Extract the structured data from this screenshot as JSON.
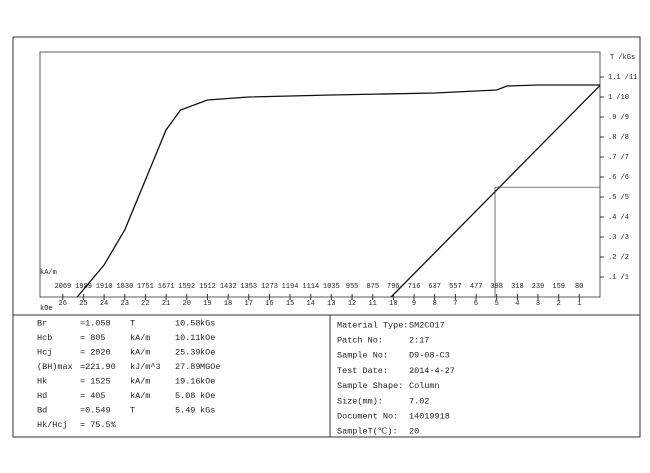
{
  "chart_data": {
    "type": "line",
    "x_unit_label": "kOe",
    "x2_unit_label": "kA/m",
    "y_unit_label": "T /kGs",
    "xlim": [
      27.1,
      0
    ],
    "xticks": [
      26,
      25,
      24,
      23,
      22,
      21,
      20,
      19,
      18,
      17,
      16,
      15,
      14,
      13,
      12,
      11,
      10,
      9,
      8,
      7,
      6,
      5,
      4,
      3,
      2,
      1
    ],
    "x2lim": [
      2157,
      0
    ],
    "x2ticks": [
      2069,
      1989,
      1910,
      1830,
      1751,
      1671,
      1592,
      1512,
      1432,
      1353,
      1273,
      1194,
      1114,
      1035,
      955,
      875,
      796,
      716,
      637,
      557,
      477,
      398,
      318,
      239,
      159,
      80
    ],
    "ylim": [
      0,
      1.225
    ],
    "yticks": [
      {
        "value": 1.1,
        "label": "1.1 /11"
      },
      {
        "value": 1.0,
        "label": "1 /10"
      },
      {
        "value": 0.9,
        "label": ".9 /9"
      },
      {
        "value": 0.8,
        "label": ".8 /8"
      },
      {
        "value": 0.7,
        "label": ".7 /7"
      },
      {
        "value": 0.6,
        "label": ".6 /6"
      },
      {
        "value": 0.5,
        "label": ".5 /5"
      },
      {
        "value": 0.4,
        "label": ".4 /4"
      },
      {
        "value": 0.3,
        "label": ".3 /3"
      },
      {
        "value": 0.2,
        "label": ".2 /2"
      },
      {
        "value": 0.1,
        "label": ".1 /1"
      }
    ],
    "series": [
      {
        "color": "#111111",
        "x": [
          25.3,
          24,
          23,
          22,
          21,
          20.3,
          19,
          17,
          13,
          8,
          5,
          4.5,
          3,
          0
        ],
        "values": [
          0,
          0.16,
          0.335,
          0.585,
          0.835,
          0.935,
          0.985,
          1.0,
          1.01,
          1.02,
          1.035,
          1.055,
          1.06,
          1.06
        ]
      },
      {
        "color": "#111111",
        "x": [
          10.11,
          0
        ],
        "values": [
          0,
          1.058
        ]
      }
    ],
    "working_point": {
      "x": 5.08,
      "y": 0.549
    }
  },
  "results": [
    [
      "Br",
      "=1.058",
      "T",
      "10.58",
      "kGs"
    ],
    [
      "Hcb",
      "= 805",
      "kA/m",
      "10.11",
      "kOe"
    ],
    [
      "Hcj",
      "= 2020",
      "kA/m",
      "25.39",
      "kOe"
    ],
    [
      "(BH)max",
      "=221.90",
      "kJ/m^3",
      "27.89",
      "MGOe"
    ],
    [
      "Hk",
      "= 1525",
      "kA/m",
      "19.16",
      "kOe"
    ],
    [
      "Hd",
      "= 405",
      "kA/m",
      "5.08",
      "kOe"
    ],
    [
      "Bd",
      "=0.549",
      "T",
      "5.49",
      "kGs"
    ],
    [
      "Hk/Hcj",
      "= 75.5%"
    ]
  ],
  "sample": [
    [
      "Material Type:",
      "SM2CO17"
    ],
    [
      "Patch No:",
      "2:17"
    ],
    [
      "Sample No:",
      "D9-08-C3"
    ],
    [
      "Test Date:",
      "2014-4-27"
    ],
    [
      "Sample Shape:",
      "Column"
    ],
    [
      "Size(mm):",
      "7.02"
    ],
    [
      "Document No:",
      "14019918"
    ],
    [
      "SampleT(℃):",
      "20"
    ]
  ]
}
